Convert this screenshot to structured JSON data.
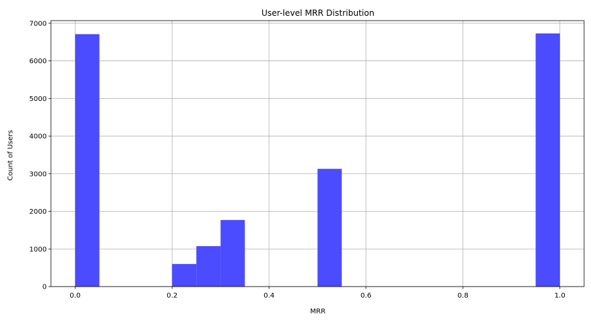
{
  "chart_data": {
    "type": "bar",
    "title": "User-level MRR Distribution",
    "xlabel": "MRR",
    "ylabel": "Count of Users",
    "xlim": [
      -0.05,
      1.05
    ],
    "ylim": [
      0,
      7070
    ],
    "xticks": [
      0.0,
      0.2,
      0.4,
      0.6,
      0.8,
      1.0
    ],
    "xtick_labels": [
      "0.0",
      "0.2",
      "0.4",
      "0.6",
      "0.8",
      "1.0"
    ],
    "yticks": [
      0,
      1000,
      2000,
      3000,
      4000,
      5000,
      6000,
      7000
    ],
    "ytick_labels": [
      "0",
      "1000",
      "2000",
      "3000",
      "4000",
      "5000",
      "6000",
      "7000"
    ],
    "grid": true,
    "bar_color": "#4b4bff",
    "bins": [
      {
        "x0": 0.0,
        "x1": 0.05,
        "value": 6710
      },
      {
        "x0": 0.2,
        "x1": 0.25,
        "value": 600
      },
      {
        "x0": 0.25,
        "x1": 0.3,
        "value": 1075
      },
      {
        "x0": 0.3,
        "x1": 0.35,
        "value": 1770
      },
      {
        "x0": 0.5,
        "x1": 0.55,
        "value": 3130
      },
      {
        "x0": 0.95,
        "x1": 1.0,
        "value": 6730
      }
    ]
  }
}
